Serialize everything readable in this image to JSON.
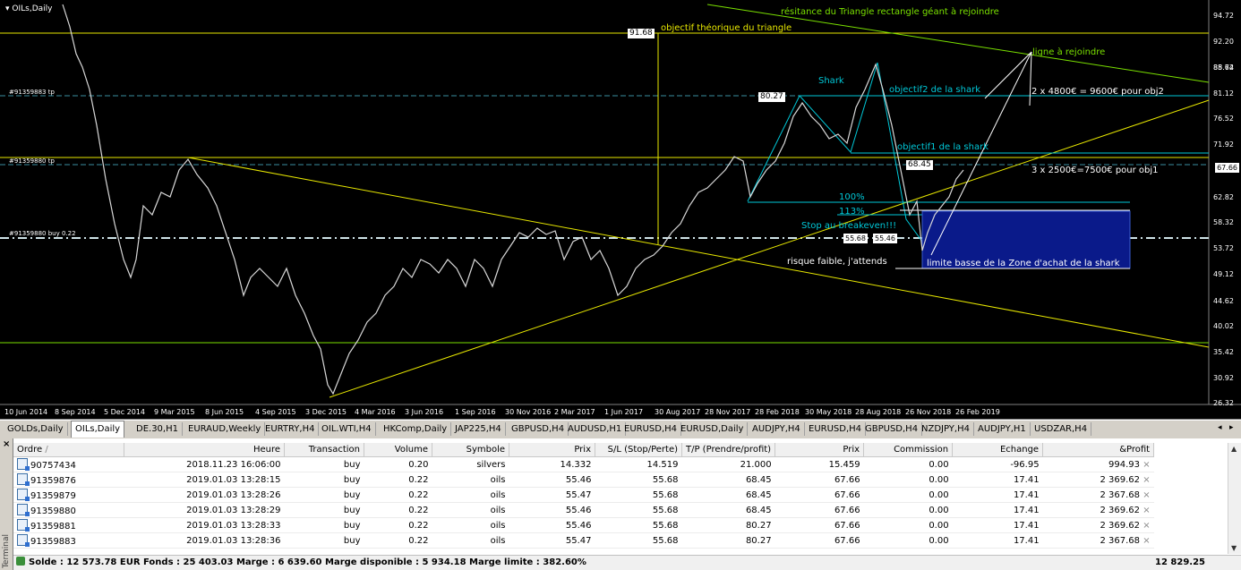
{
  "chart": {
    "symbol": "OILs,Daily",
    "price_axis": [
      "94.72",
      "92.20",
      "88.74",
      "85.62",
      "81.12",
      "76.52",
      "71.92",
      "67.66",
      "62.82",
      "58.32",
      "53.72",
      "49.12",
      "44.62",
      "40.02",
      "35.42",
      "30.92",
      "26.32"
    ],
    "current_price": "67.66",
    "time_axis": [
      "10 Jun 2014",
      "8 Sep 2014",
      "5 Dec 2014",
      "9 Mar 2015",
      "8 Jun 2015",
      "4 Sep 2015",
      "3 Dec 2015",
      "4 Mar 2016",
      "3 Jun 2016",
      "1 Sep 2016",
      "30 Nov 2016",
      "2 Mar 2017",
      "1 Jun 2017",
      "30 Aug 2017",
      "28 Nov 2017",
      "28 Feb 2018",
      "30 May 2018",
      "28 Aug 2018",
      "26 Nov 2018",
      "26 Feb 2019"
    ],
    "left_tags": [
      "#91359883 tp",
      "#91359880 tp",
      "#91359880 buy 0.22"
    ],
    "price_boxes": [
      "91.68",
      "80.27",
      "68.45",
      "55.68",
      "55.46"
    ],
    "annotations": {
      "resistance": "résitance du Triangle rectangle géant à rejoindre",
      "objective": "objectif théorique du triangle",
      "ligne": "ligne à rejoindre",
      "shark": "Shark",
      "obj2": "objectif2 de la shark",
      "obj2_calc": "2 x 4800€ = 9600€ pour obj2",
      "obj1": "objectif1 de la shark",
      "obj1_calc": "3 x 2500€=7500€ pour obj1",
      "pct100": "100%",
      "pct113": "113%",
      "stop": "Stop au breakeven!!!",
      "risk": "risque faible, j'attends",
      "zone": "limite basse de la Zone d'achat de la shark"
    }
  },
  "tabs": [
    "GOLDs,Daily",
    "OILs,Daily",
    "DE.30,H1",
    "EURAUD,Weekly",
    "EURTRY,H4",
    "OIL.WTI,H4",
    "HKComp,Daily",
    "JAP225,H4",
    "GBPUSD,H4",
    "AUDUSD,H1",
    "EURUSD,H4",
    "EURUSD,Daily",
    "AUDJPY,H4",
    "EURUSD,H4",
    "GBPUSD,H4",
    "NZDJPY,H4",
    "AUDJPY,H1",
    "USDZAR,H4"
  ],
  "active_tab": "OILs,Daily",
  "terminal": {
    "side_label": "Terminal",
    "columns": [
      "Ordre",
      "/",
      "Heure",
      "Transaction",
      "Volume",
      "Symbole",
      "Prix",
      "S/L (Stop/Perte)",
      "T/P (Prendre/profit)",
      "Prix",
      "Commission",
      "Echange",
      "&Profit"
    ],
    "rows": [
      [
        "90757434",
        "2018.11.23 16:06:00",
        "buy",
        "0.20",
        "silvers",
        "14.332",
        "14.519",
        "21.000",
        "15.459",
        "0.00",
        "-96.95",
        "994.93"
      ],
      [
        "91359876",
        "2019.01.03 13:28:15",
        "buy",
        "0.22",
        "oils",
        "55.46",
        "55.68",
        "68.45",
        "67.66",
        "0.00",
        "17.41",
        "2 369.62"
      ],
      [
        "91359879",
        "2019.01.03 13:28:26",
        "buy",
        "0.22",
        "oils",
        "55.47",
        "55.68",
        "68.45",
        "67.66",
        "0.00",
        "17.41",
        "2 367.68"
      ],
      [
        "91359880",
        "2019.01.03 13:28:29",
        "buy",
        "0.22",
        "oils",
        "55.46",
        "55.68",
        "68.45",
        "67.66",
        "0.00",
        "17.41",
        "2 369.62"
      ],
      [
        "91359881",
        "2019.01.03 13:28:33",
        "buy",
        "0.22",
        "oils",
        "55.46",
        "55.68",
        "80.27",
        "67.66",
        "0.00",
        "17.41",
        "2 369.62"
      ],
      [
        "91359883",
        "2019.01.03 13:28:36",
        "buy",
        "0.22",
        "oils",
        "55.47",
        "55.68",
        "80.27",
        "67.66",
        "0.00",
        "17.41",
        "2 367.68"
      ]
    ],
    "status": "Solde : 12 573.78 EUR  Fonds : 25 403.03  Marge : 6 639.60  Marge disponible : 5 934.18  Marge limite : 382.60%",
    "total_profit": "12 829.25"
  }
}
